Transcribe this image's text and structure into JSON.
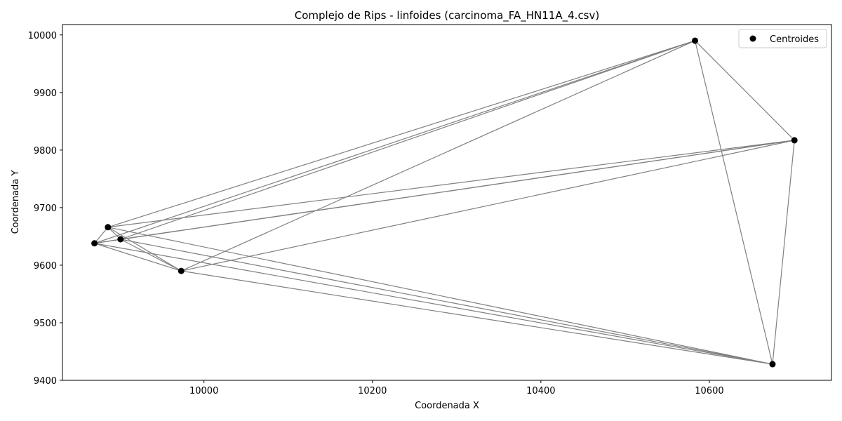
{
  "chart_data": {
    "type": "scatter",
    "title": "Complejo de Rips - linfoides (carcinoma_FA_HN11A_4.csv)",
    "xlabel": "Coordenada X",
    "ylabel": "Coordenada Y",
    "xlim": [
      9832,
      10745
    ],
    "ylim": [
      9400,
      10018
    ],
    "xticks": [
      10000,
      10200,
      10400,
      10600
    ],
    "yticks": [
      9400,
      9500,
      9600,
      9700,
      9800,
      9900,
      10000
    ],
    "grid": false,
    "legend_position": "top-right",
    "series": [
      {
        "name": "Centroides",
        "color": "#000000",
        "points": [
          {
            "x": 9870,
            "y": 9638
          },
          {
            "x": 9886,
            "y": 9666
          },
          {
            "x": 9901,
            "y": 9645
          },
          {
            "x": 9973,
            "y": 9590
          },
          {
            "x": 10583,
            "y": 9990
          },
          {
            "x": 10701,
            "y": 9817
          },
          {
            "x": 10675,
            "y": 9428
          }
        ]
      }
    ],
    "edges": [
      [
        0,
        1
      ],
      [
        0,
        2
      ],
      [
        0,
        3
      ],
      [
        1,
        2
      ],
      [
        1,
        3
      ],
      [
        2,
        3
      ],
      [
        1,
        4
      ],
      [
        2,
        4
      ],
      [
        0,
        4
      ],
      [
        3,
        4
      ],
      [
        1,
        5
      ],
      [
        2,
        5
      ],
      [
        0,
        5
      ],
      [
        3,
        5
      ],
      [
        1,
        6
      ],
      [
        2,
        6
      ],
      [
        0,
        6
      ],
      [
        3,
        6
      ],
      [
        4,
        5
      ],
      [
        4,
        6
      ],
      [
        5,
        6
      ]
    ],
    "edge_color": "#808080"
  }
}
